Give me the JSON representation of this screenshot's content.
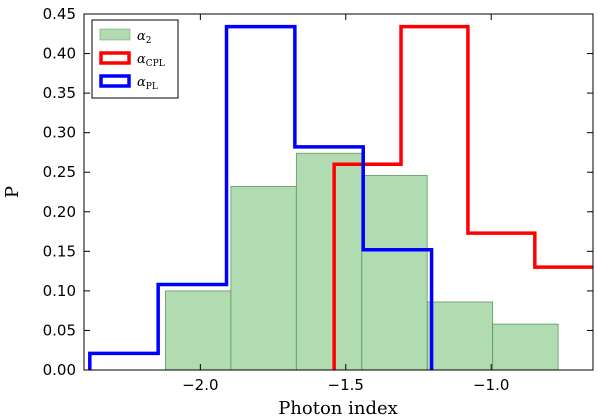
{
  "chart_data": {
    "type": "histogram",
    "xlabel": "Photon index",
    "ylabel": "P",
    "xlim": [
      -2.4,
      -0.65
    ],
    "ylim": [
      0,
      0.45
    ],
    "xticks": [
      -2.0,
      -1.5,
      -1.0
    ],
    "xtick_labels": [
      "−2.0",
      "−1.5",
      "−1.0"
    ],
    "yticks": [
      0.0,
      0.05,
      0.1,
      0.15,
      0.2,
      0.25,
      0.3,
      0.35,
      0.4,
      0.45
    ],
    "ytick_labels": [
      "0.00",
      "0.05",
      "0.10",
      "0.15",
      "0.20",
      "0.25",
      "0.30",
      "0.35",
      "0.40",
      "0.45"
    ],
    "grid": false,
    "legend_position": "top-left",
    "series": [
      {
        "name": "α2",
        "label_main": "α",
        "label_sub": "2",
        "style": "filled",
        "color": "#90cc90",
        "edges": [
          -2.12,
          -1.895,
          -1.67,
          -1.445,
          -1.22,
          -0.995,
          -0.77
        ],
        "values": [
          0.1,
          0.232,
          0.274,
          0.246,
          0.086,
          0.058
        ]
      },
      {
        "name": "αCPL",
        "label_main": "α",
        "label_sub": "CPL",
        "style": "step",
        "color": "#ff0000",
        "edges": [
          -1.54,
          -1.31,
          -1.08,
          -0.85,
          -0.62
        ],
        "values": [
          0.26,
          0.434,
          0.173,
          0.13
        ]
      },
      {
        "name": "αPL",
        "label_main": "α",
        "label_sub": "PL",
        "style": "step",
        "color": "#0000ff",
        "edges": [
          -2.38,
          -2.145,
          -1.91,
          -1.675,
          -1.44,
          -1.205
        ],
        "values": [
          0.021,
          0.108,
          0.434,
          0.282,
          0.152
        ]
      }
    ]
  }
}
